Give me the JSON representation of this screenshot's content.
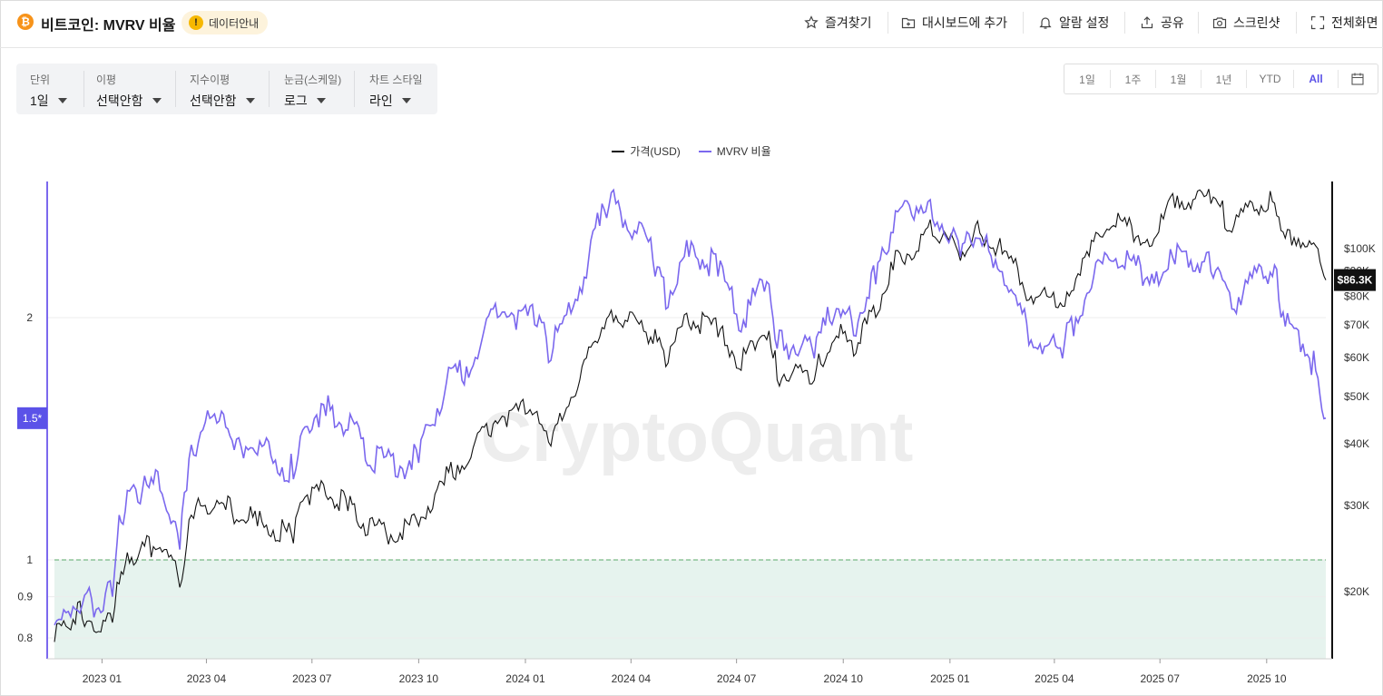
{
  "header": {
    "coin_icon": "bitcoin-icon",
    "title": "비트코인: MVRV 비율",
    "info_badge": "데이터안내",
    "actions": [
      {
        "label": "즐겨찾기",
        "icon": "star-icon"
      },
      {
        "label": "대시보드에 추가",
        "icon": "dashboard-add-icon"
      },
      {
        "label": "알람 설정",
        "icon": "bell-icon"
      },
      {
        "label": "공유",
        "icon": "share-icon"
      },
      {
        "label": "스크린샷",
        "icon": "camera-icon"
      },
      {
        "label": "전체화면",
        "icon": "fullscreen-icon"
      }
    ]
  },
  "controls": [
    {
      "label": "단위",
      "value": "1일"
    },
    {
      "label": "이평",
      "value": "선택안함"
    },
    {
      "label": "지수이평",
      "value": "선택안함"
    },
    {
      "label": "눈금(스케일)",
      "value": "로그"
    },
    {
      "label": "차트 스타일",
      "value": "라인"
    }
  ],
  "ranges": {
    "options": [
      "1일",
      "1주",
      "1월",
      "1년",
      "YTD",
      "All"
    ],
    "active": "All",
    "calendar_icon": "calendar-icon"
  },
  "colors": {
    "price": "#111111",
    "mvrv": "#7b68ee",
    "zone_fill": "#e6f3ee",
    "zone_line": "#5aa86a",
    "accent": "#5b52e8"
  },
  "watermark": "CryptoQuant",
  "chart_data": {
    "type": "line",
    "x_axis": {
      "ticks": [
        "2023 01",
        "2023 04",
        "2023 07",
        "2023 10",
        "2024 01",
        "2024 04",
        "2024 07",
        "2024 10",
        "2025 01",
        "2025 04",
        "2025 07",
        "2025 10"
      ],
      "range": [
        "2022-11-21",
        "2025-11-21"
      ]
    },
    "y_left": {
      "scale": "log",
      "ticks": [
        0.8,
        0.9,
        1,
        2
      ],
      "tick_labels": [
        "0.8",
        "0.9",
        "1",
        "2"
      ],
      "current_label": "1.5*",
      "current_value": 1.5
    },
    "y_right": {
      "scale": "log",
      "ticks": [
        20000,
        30000,
        40000,
        50000,
        60000,
        70000,
        80000,
        90000,
        100000
      ],
      "tick_labels": [
        "$20K",
        "$30K",
        "$40K",
        "$50K",
        "$60K",
        "$70K",
        "$80K",
        "$90K",
        "$100K"
      ],
      "current_label": "$86.3K",
      "current_value": 86300
    },
    "zone": {
      "from": 0.75,
      "to": 1.0,
      "boundary": 1.0
    },
    "series": [
      {
        "name": "가격(USD)",
        "axis": "right",
        "points": [
          [
            "2022-11-21",
            15800
          ],
          [
            "2022-12-01",
            17000
          ],
          [
            "2022-12-15",
            17600
          ],
          [
            "2022-12-31",
            16550
          ],
          [
            "2023-01-10",
            17300
          ],
          [
            "2023-01-14",
            20900
          ],
          [
            "2023-01-21",
            22700
          ],
          [
            "2023-02-01",
            23500
          ],
          [
            "2023-02-20",
            24600
          ],
          [
            "2023-03-09",
            20400
          ],
          [
            "2023-03-15",
            24900
          ],
          [
            "2023-03-21",
            28200
          ],
          [
            "2023-04-14",
            30400
          ],
          [
            "2023-04-25",
            27500
          ],
          [
            "2023-05-15",
            27200
          ],
          [
            "2023-06-15",
            25100
          ],
          [
            "2023-06-23",
            30600
          ],
          [
            "2023-07-13",
            31400
          ],
          [
            "2023-08-01",
            29200
          ],
          [
            "2023-08-18",
            26100
          ],
          [
            "2023-09-11",
            25200
          ],
          [
            "2023-10-01",
            27200
          ],
          [
            "2023-10-23",
            33000
          ],
          [
            "2023-11-15",
            37500
          ],
          [
            "2023-12-08",
            44000
          ],
          [
            "2024-01-11",
            46600
          ],
          [
            "2024-01-23",
            39600
          ],
          [
            "2024-02-15",
            51800
          ],
          [
            "2024-03-05",
            66000
          ],
          [
            "2024-03-13",
            73000
          ],
          [
            "2024-04-20",
            64000
          ],
          [
            "2024-05-01",
            57500
          ],
          [
            "2024-05-21",
            70000
          ],
          [
            "2024-06-15",
            66000
          ],
          [
            "2024-07-05",
            56500
          ],
          [
            "2024-07-29",
            68000
          ],
          [
            "2024-08-05",
            54000
          ],
          [
            "2024-09-06",
            53900
          ],
          [
            "2024-09-27",
            65800
          ],
          [
            "2024-10-10",
            60400
          ],
          [
            "2024-10-29",
            72400
          ],
          [
            "2024-11-13",
            90400
          ],
          [
            "2024-12-05",
            98800
          ],
          [
            "2024-12-17",
            106200
          ],
          [
            "2025-01-10",
            94500
          ],
          [
            "2025-01-21",
            106000
          ],
          [
            "2025-02-15",
            97500
          ],
          [
            "2025-03-10",
            78600
          ],
          [
            "2025-04-08",
            76300
          ],
          [
            "2025-05-01",
            96500
          ],
          [
            "2025-05-22",
            111500
          ],
          [
            "2025-06-22",
            101000
          ],
          [
            "2025-07-14",
            121000
          ],
          [
            "2025-08-14",
            123500
          ],
          [
            "2025-09-01",
            108000
          ],
          [
            "2025-10-06",
            124700
          ],
          [
            "2025-10-17",
            105000
          ],
          [
            "2025-11-05",
            101000
          ],
          [
            "2025-11-16",
            94000
          ],
          [
            "2025-11-21",
            86300
          ]
        ]
      },
      {
        "name": "MVRV 비율",
        "axis": "left",
        "points": [
          [
            "2022-11-21",
            0.83
          ],
          [
            "2022-12-01",
            0.86
          ],
          [
            "2022-12-15",
            0.88
          ],
          [
            "2022-12-31",
            0.86
          ],
          [
            "2023-01-10",
            0.9
          ],
          [
            "2023-01-14",
            1.05
          ],
          [
            "2023-01-21",
            1.15
          ],
          [
            "2023-02-01",
            1.18
          ],
          [
            "2023-02-20",
            1.22
          ],
          [
            "2023-03-09",
            1.03
          ],
          [
            "2023-03-15",
            1.22
          ],
          [
            "2023-03-21",
            1.35
          ],
          [
            "2023-04-14",
            1.53
          ],
          [
            "2023-04-25",
            1.37
          ],
          [
            "2023-05-15",
            1.35
          ],
          [
            "2023-06-15",
            1.26
          ],
          [
            "2023-06-23",
            1.45
          ],
          [
            "2023-07-13",
            1.51
          ],
          [
            "2023-08-01",
            1.45
          ],
          [
            "2023-08-18",
            1.31
          ],
          [
            "2023-09-11",
            1.27
          ],
          [
            "2023-10-01",
            1.32
          ],
          [
            "2023-10-23",
            1.6
          ],
          [
            "2023-11-15",
            1.72
          ],
          [
            "2023-12-08",
            2.0
          ],
          [
            "2024-01-11",
            1.95
          ],
          [
            "2024-01-23",
            1.77
          ],
          [
            "2024-02-15",
            2.1
          ],
          [
            "2024-03-05",
            2.6
          ],
          [
            "2024-03-13",
            2.75
          ],
          [
            "2024-04-20",
            2.35
          ],
          [
            "2024-05-01",
            2.05
          ],
          [
            "2024-05-21",
            2.38
          ],
          [
            "2024-06-15",
            2.25
          ],
          [
            "2024-07-05",
            1.92
          ],
          [
            "2024-07-29",
            2.2
          ],
          [
            "2024-08-05",
            1.83
          ],
          [
            "2024-09-06",
            1.78
          ],
          [
            "2024-09-27",
            2.05
          ],
          [
            "2024-10-10",
            1.9
          ],
          [
            "2024-10-29",
            2.2
          ],
          [
            "2024-11-13",
            2.55
          ],
          [
            "2024-12-05",
            2.7
          ],
          [
            "2024-12-17",
            2.65
          ],
          [
            "2025-01-10",
            2.38
          ],
          [
            "2025-01-21",
            2.45
          ],
          [
            "2025-02-15",
            2.28
          ],
          [
            "2025-03-10",
            1.85
          ],
          [
            "2025-04-08",
            1.78
          ],
          [
            "2025-05-01",
            2.15
          ],
          [
            "2025-05-22",
            2.35
          ],
          [
            "2025-06-22",
            2.2
          ],
          [
            "2025-07-14",
            2.33
          ],
          [
            "2025-08-14",
            2.28
          ],
          [
            "2025-09-01",
            2.05
          ],
          [
            "2025-10-06",
            2.25
          ],
          [
            "2025-10-17",
            1.95
          ],
          [
            "2025-11-05",
            1.8
          ],
          [
            "2025-11-16",
            1.6
          ],
          [
            "2025-11-21",
            1.5
          ]
        ]
      }
    ]
  }
}
